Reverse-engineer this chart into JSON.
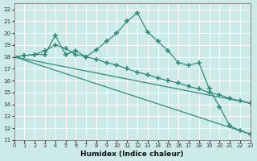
{
  "line1_x": [
    0,
    1,
    2,
    3,
    4,
    5,
    6,
    7,
    8,
    9,
    10,
    11,
    12,
    13,
    14,
    15,
    16,
    17,
    18,
    19,
    20,
    21,
    22,
    23
  ],
  "line1_y": [
    18.0,
    18.1,
    18.2,
    18.2,
    19.8,
    18.2,
    18.5,
    18.0,
    18.6,
    19.3,
    20.0,
    21.0,
    21.7,
    20.1,
    19.3,
    18.5,
    17.5,
    17.3,
    17.5,
    15.3,
    13.8,
    12.2,
    11.8,
    11.5
  ],
  "line2_x": [
    0,
    1,
    2,
    3,
    4,
    5,
    6,
    7,
    8,
    9,
    10,
    11,
    12,
    13,
    14,
    15,
    16,
    17,
    18,
    19,
    20,
    21,
    22,
    23
  ],
  "line2_y": [
    18.0,
    18.1,
    18.2,
    18.5,
    19.0,
    18.7,
    18.2,
    18.0,
    17.8,
    17.5,
    17.3,
    17.0,
    16.7,
    16.5,
    16.2,
    16.0,
    15.8,
    15.5,
    15.3,
    15.0,
    14.8,
    14.5,
    14.3,
    14.1
  ],
  "line3_x": [
    0,
    23
  ],
  "line3_y": [
    18.0,
    11.5
  ],
  "line4_x": [
    0,
    23
  ],
  "line4_y": [
    18.0,
    14.1
  ],
  "color": "#2e8b7a",
  "bg_color": "#cceae8",
  "grid_color": "#b8d8d6",
  "xlabel": "Humidex (Indice chaleur)",
  "xlim": [
    0,
    23
  ],
  "ylim": [
    11,
    22.5
  ],
  "yticks": [
    11,
    12,
    13,
    14,
    15,
    16,
    17,
    18,
    19,
    20,
    21,
    22
  ],
  "xticks": [
    0,
    1,
    2,
    3,
    4,
    5,
    6,
    7,
    8,
    9,
    10,
    11,
    12,
    13,
    14,
    15,
    16,
    17,
    18,
    19,
    20,
    21,
    22,
    23
  ]
}
